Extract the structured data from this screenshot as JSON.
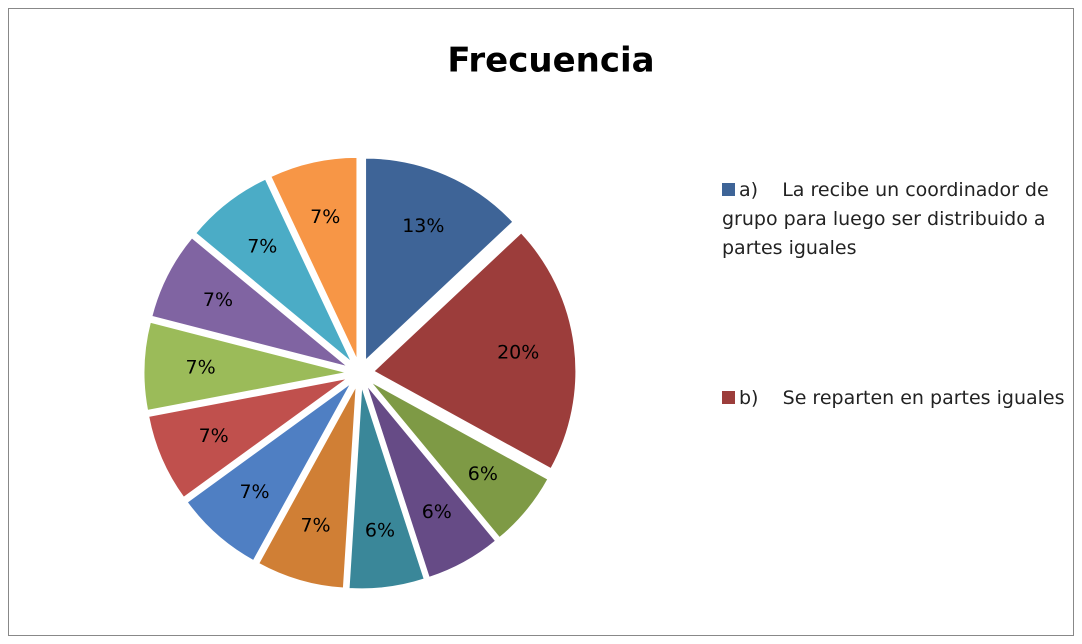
{
  "chart_data": {
    "type": "pie",
    "title": "Frecuencia",
    "categories": [
      "a)    La recibe un coordinador de grupo para luego ser distribuido a partes iguales",
      "b)    Se reparten en partes iguales",
      null,
      null,
      null,
      null,
      null,
      null,
      null,
      null,
      null,
      null
    ],
    "values": [
      13,
      20,
      6,
      6,
      6,
      7,
      7,
      7,
      7,
      7,
      7,
      7
    ],
    "value_labels": [
      "13%",
      "20%",
      "6%",
      "6%",
      "6%",
      "7%",
      "7%",
      "7%",
      "7%",
      "7%",
      "7%",
      "7%"
    ],
    "colors": [
      "#3e6497",
      "#9c3d3b",
      "#7e9a45",
      "#664b86",
      "#3a8799",
      "#d07f35",
      "#4f7fc3",
      "#c0504d",
      "#9bbb59",
      "#8064a2",
      "#4bacc6",
      "#f79646"
    ],
    "legend": "right"
  }
}
